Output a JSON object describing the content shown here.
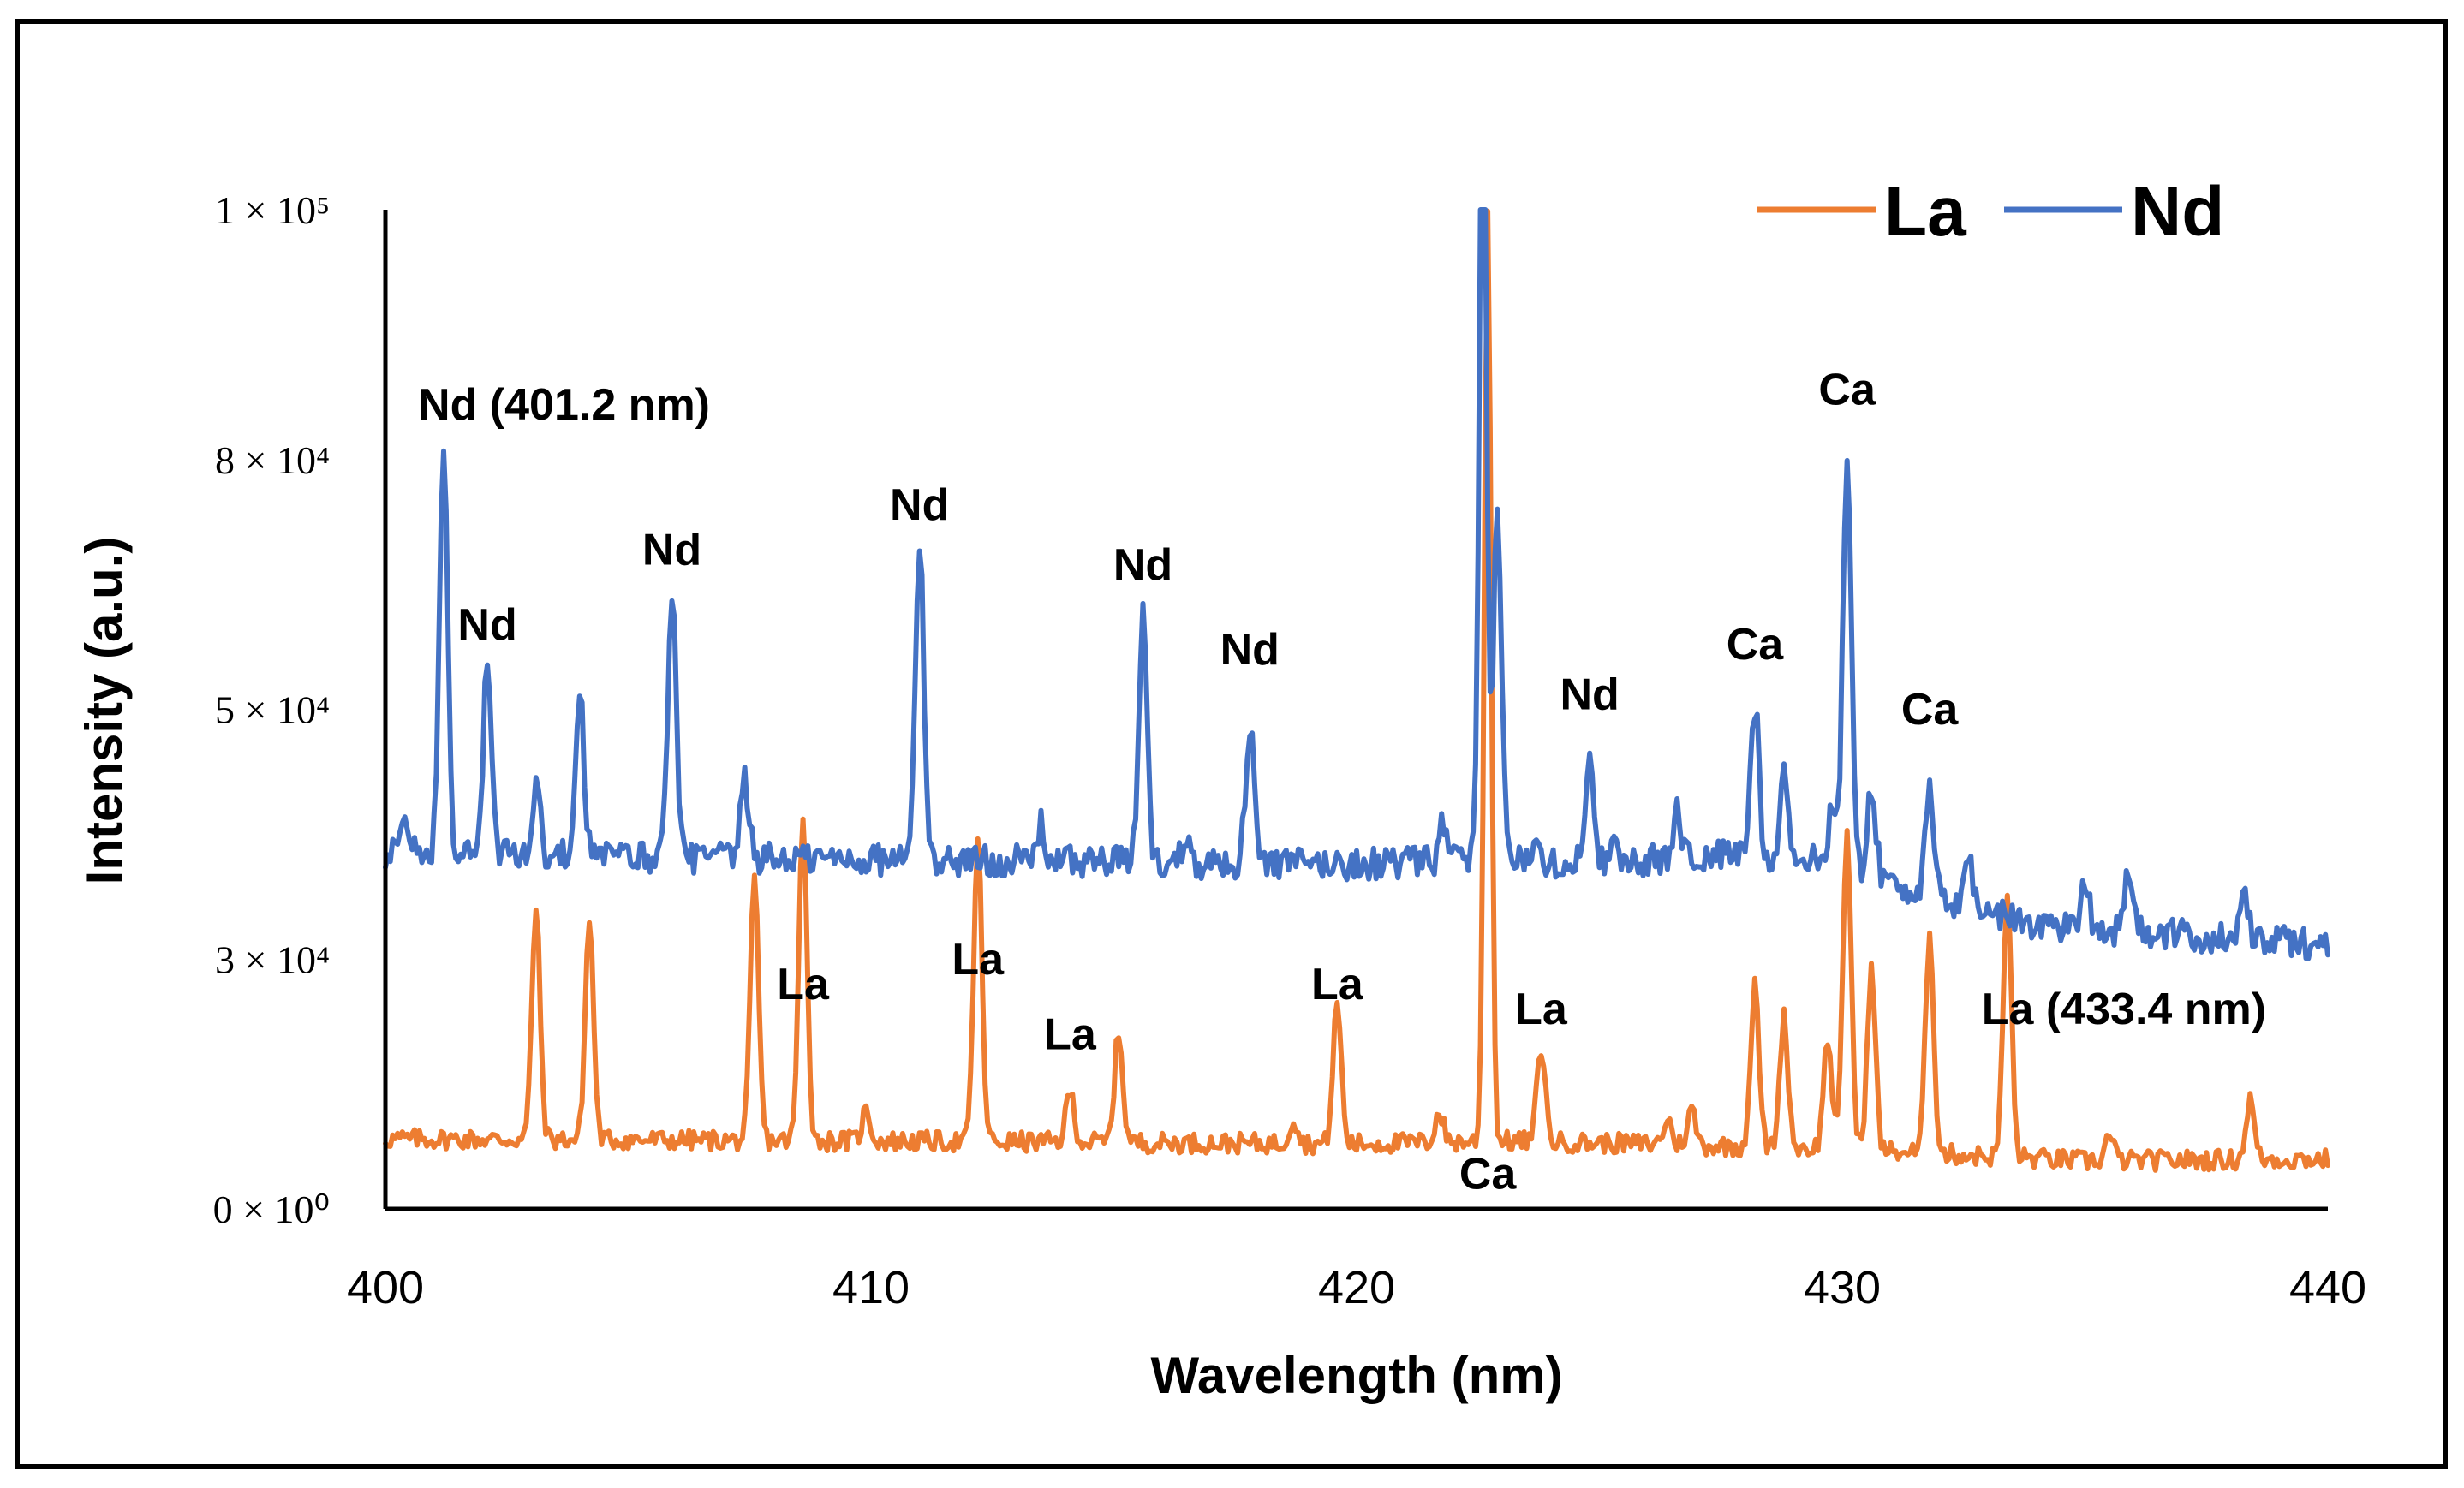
{
  "chart_data": {
    "type": "line",
    "title": "",
    "xlabel": "Wavelength (nm)",
    "ylabel": "Intensity (a.u.)",
    "xlim": [
      400,
      440
    ],
    "ylim": [
      0,
      100000
    ],
    "xticks": [
      {
        "value": 400,
        "label": "400"
      },
      {
        "value": 410,
        "label": "410"
      },
      {
        "value": 420,
        "label": "420"
      },
      {
        "value": 430,
        "label": "430"
      },
      {
        "value": 440,
        "label": "440"
      }
    ],
    "yticks": [
      {
        "value": 0,
        "label": "0 × 10⁰"
      },
      {
        "value": 25000,
        "label": "3 × 10⁴"
      },
      {
        "value": 50000,
        "label": "5 × 10⁴"
      },
      {
        "value": 75000,
        "label": "8 × 10⁴"
      },
      {
        "value": 100000,
        "label": "1 × 10⁵"
      }
    ],
    "legend_position": "top-right",
    "series": [
      {
        "name": "La",
        "color": "#ED7D31",
        "baseline": [
          [
            400,
            7000
          ],
          [
            410,
            6800
          ],
          [
            420,
            6500
          ],
          [
            423,
            6800
          ],
          [
            426,
            6500
          ],
          [
            430,
            6000
          ],
          [
            435,
            4800
          ],
          [
            440,
            5000
          ]
        ],
        "noise": 1000,
        "peaks": [
          [
            403.1,
            23000
          ],
          [
            404.2,
            22000
          ],
          [
            407.6,
            26000
          ],
          [
            408.6,
            32000
          ],
          [
            409.9,
            3000
          ],
          [
            412.2,
            30000
          ],
          [
            414.1,
            5000
          ],
          [
            415.1,
            11000
          ],
          [
            418.7,
            2500
          ],
          [
            419.6,
            14000
          ],
          [
            421.7,
            3000
          ],
          [
            422.7,
            93000
          ],
          [
            423.8,
            9500
          ],
          [
            426.4,
            2500
          ],
          [
            426.9,
            3500
          ],
          [
            428.2,
            16000
          ],
          [
            428.8,
            13000
          ],
          [
            429.7,
            11000
          ],
          [
            430.1,
            32000
          ],
          [
            430.6,
            18000
          ],
          [
            431.8,
            22000
          ],
          [
            433.4,
            26000
          ],
          [
            435.5,
            2500
          ],
          [
            438.4,
            6000
          ]
        ]
      },
      {
        "name": "Nd",
        "color": "#4472C4",
        "baseline": [
          [
            400,
            35500
          ],
          [
            410,
            35000
          ],
          [
            420,
            34500
          ],
          [
            423,
            35000
          ],
          [
            425,
            34500
          ],
          [
            428,
            35500
          ],
          [
            430,
            34500
          ],
          [
            432,
            31000
          ],
          [
            434,
            28500
          ],
          [
            438,
            27000
          ],
          [
            440,
            26500
          ]
        ],
        "noise": 1600,
        "peaks": [
          [
            400.4,
            3500
          ],
          [
            401.2,
            41000
          ],
          [
            402.1,
            19000
          ],
          [
            403.1,
            7000
          ],
          [
            404.0,
            17000
          ],
          [
            405.9,
            27000
          ],
          [
            407.4,
            7500
          ],
          [
            411.0,
            32000
          ],
          [
            413.5,
            3500
          ],
          [
            415.6,
            25000
          ],
          [
            416.5,
            3000
          ],
          [
            417.8,
            14000
          ],
          [
            421.8,
            4000
          ],
          [
            422.6,
            85000
          ],
          [
            422.9,
            35000
          ],
          [
            423.7,
            3000
          ],
          [
            424.8,
            12000
          ],
          [
            425.3,
            3500
          ],
          [
            426.6,
            5000
          ],
          [
            428.2,
            15000
          ],
          [
            428.8,
            8500
          ],
          [
            429.8,
            6000
          ],
          [
            430.1,
            41000
          ],
          [
            430.6,
            9000
          ],
          [
            431.8,
            10000
          ],
          [
            432.6,
            5000
          ],
          [
            435.0,
            5000
          ],
          [
            435.9,
            6000
          ],
          [
            438.3,
            4000
          ]
        ]
      }
    ],
    "annotations": [
      {
        "text": "Nd (401.2 nm)",
        "x": 401.2,
        "y": 79000,
        "series": "Nd"
      },
      {
        "text": "Nd",
        "x": 402.1,
        "y": 57000,
        "series": "Nd"
      },
      {
        "text": "Nd",
        "x": 405.9,
        "y": 64500,
        "series": "Nd"
      },
      {
        "text": "Nd",
        "x": 411.0,
        "y": 69000,
        "series": "Nd"
      },
      {
        "text": "Nd",
        "x": 415.6,
        "y": 63000,
        "series": "Nd"
      },
      {
        "text": "Nd",
        "x": 417.8,
        "y": 54500,
        "series": "Nd"
      },
      {
        "text": "Nd",
        "x": 424.8,
        "y": 50000,
        "series": "Nd"
      },
      {
        "text": "Ca",
        "x": 428.2,
        "y": 55000,
        "series": "Nd"
      },
      {
        "text": "Ca",
        "x": 430.1,
        "y": 80500,
        "series": "Nd"
      },
      {
        "text": "Ca",
        "x": 431.8,
        "y": 48500,
        "series": "Nd"
      },
      {
        "text": "La",
        "x": 408.6,
        "y": 21000,
        "series": "La"
      },
      {
        "text": "La",
        "x": 412.2,
        "y": 23500,
        "series": "La"
      },
      {
        "text": "La",
        "x": 414.1,
        "y": 16000,
        "series": "La"
      },
      {
        "text": "La",
        "x": 419.6,
        "y": 21000,
        "series": "La"
      },
      {
        "text": "La",
        "x": 423.8,
        "y": 18500,
        "series": "La"
      },
      {
        "text": "La (433.4 nm)",
        "x": 433.4,
        "y": 18500,
        "series": "La"
      },
      {
        "text": "Ca",
        "x": 422.7,
        "y": 2000,
        "series": "La"
      }
    ]
  }
}
